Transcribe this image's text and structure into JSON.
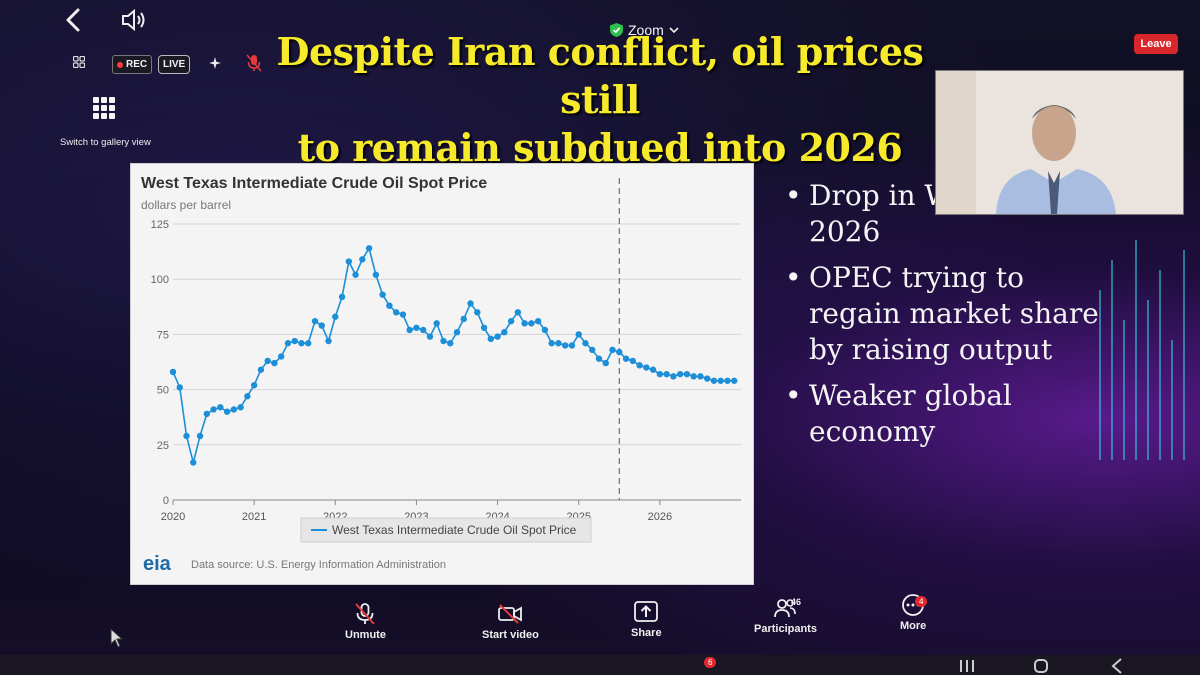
{
  "app": {
    "title": "Zoom",
    "leave_label": "Leave",
    "rec_label": "REC",
    "live_label": "LIVE",
    "gallery_label": "Switch to gallery view"
  },
  "slide": {
    "title_line1": "Despite Iran conflict, oil prices still",
    "title_line2": "to remain subdued into 2026",
    "bullets": [
      "Drop in WTI through 2026",
      "OPEC trying to regain market share by raising output",
      "Weaker global economy"
    ]
  },
  "toolbar": {
    "unmute": "Unmute",
    "start_video": "Start video",
    "share": "Share",
    "participants": "Participants",
    "participants_count": "46",
    "more": "More",
    "more_badge": "4",
    "taskbar_badge": "6"
  },
  "colors": {
    "accent": "#d8262a",
    "title": "#f6ea2a",
    "series": "#1c8fd8"
  },
  "chart_data": {
    "type": "line",
    "title": "West Texas Intermediate Crude Oil Spot Price",
    "ylabel": "dollars per barrel",
    "ylim": [
      0,
      125
    ],
    "yticks": [
      "0",
      "25",
      "50",
      "75",
      "100",
      "125"
    ],
    "xticks": [
      "2020",
      "2021",
      "2022",
      "2023",
      "2024",
      "2025",
      "2026"
    ],
    "grid": true,
    "legend": "bottom",
    "forecast_start": "2025-07",
    "source": "Data source: U.S. Energy Information Administration",
    "logo": "eia",
    "series": [
      {
        "name": "West Texas Intermediate Crude Oil Spot Price",
        "x": [
          "2020-01",
          "2020-02",
          "2020-03",
          "2020-04",
          "2020-05",
          "2020-06",
          "2020-07",
          "2020-08",
          "2020-09",
          "2020-10",
          "2020-11",
          "2020-12",
          "2021-01",
          "2021-02",
          "2021-03",
          "2021-04",
          "2021-05",
          "2021-06",
          "2021-07",
          "2021-08",
          "2021-09",
          "2021-10",
          "2021-11",
          "2021-12",
          "2022-01",
          "2022-02",
          "2022-03",
          "2022-04",
          "2022-05",
          "2022-06",
          "2022-07",
          "2022-08",
          "2022-09",
          "2022-10",
          "2022-11",
          "2022-12",
          "2023-01",
          "2023-02",
          "2023-03",
          "2023-04",
          "2023-05",
          "2023-06",
          "2023-07",
          "2023-08",
          "2023-09",
          "2023-10",
          "2023-11",
          "2023-12",
          "2024-01",
          "2024-02",
          "2024-03",
          "2024-04",
          "2024-05",
          "2024-06",
          "2024-07",
          "2024-08",
          "2024-09",
          "2024-10",
          "2024-11",
          "2024-12",
          "2025-01",
          "2025-02",
          "2025-03",
          "2025-04",
          "2025-05",
          "2025-06",
          "2025-07",
          "2025-08",
          "2025-09",
          "2025-10",
          "2025-11",
          "2025-12",
          "2026-01",
          "2026-02",
          "2026-03",
          "2026-04",
          "2026-05",
          "2026-06",
          "2026-07",
          "2026-08",
          "2026-09",
          "2026-10",
          "2026-11",
          "2026-12"
        ],
        "values": [
          58,
          51,
          29,
          17,
          29,
          39,
          41,
          42,
          40,
          41,
          42,
          47,
          52,
          59,
          63,
          62,
          65,
          71,
          72,
          71,
          71,
          81,
          79,
          72,
          83,
          92,
          108,
          102,
          109,
          114,
          102,
          93,
          88,
          85,
          84,
          77,
          78,
          77,
          74,
          80,
          72,
          71,
          76,
          82,
          89,
          85,
          78,
          73,
          74,
          76,
          81,
          85,
          80,
          80,
          81,
          77,
          71,
          71,
          70,
          70,
          75,
          71,
          68,
          64,
          62,
          68,
          67,
          64,
          63,
          61,
          60,
          59,
          57,
          57,
          56,
          57,
          57,
          56,
          56,
          55,
          54,
          54,
          54,
          54
        ]
      }
    ]
  }
}
